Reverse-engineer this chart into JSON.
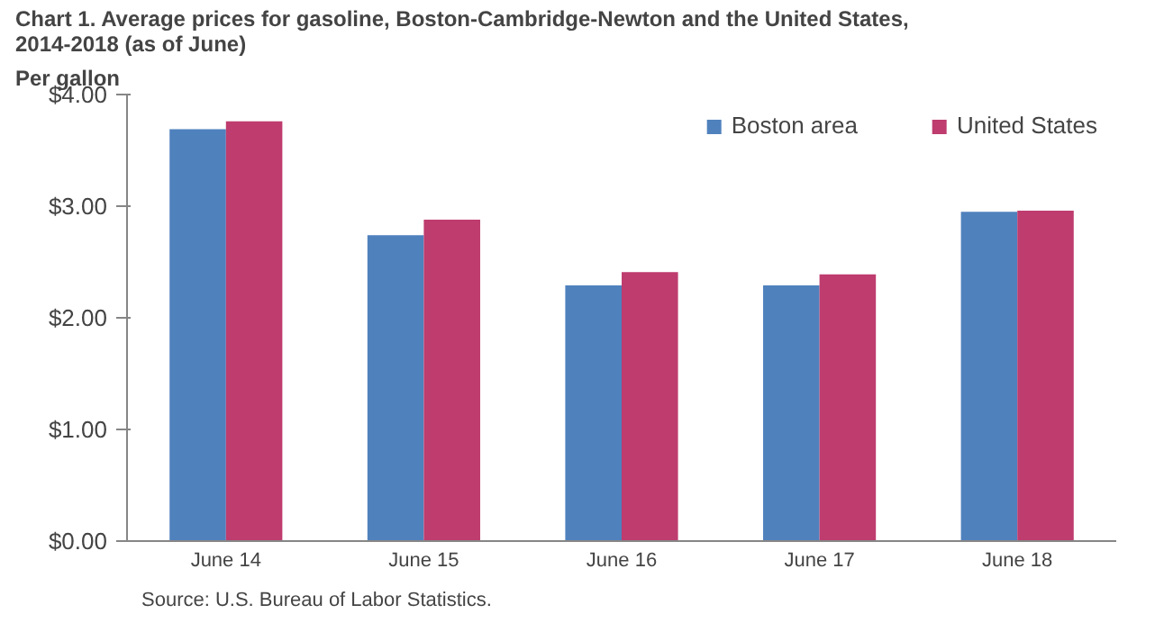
{
  "chart_data": {
    "type": "bar",
    "title": "Chart 1. Average prices for gasoline, Boston-Cambridge-Newton and the United States,\n2014-2018 (as of June)",
    "ylabel": "Per gallon",
    "categories": [
      "June 14",
      "June 15",
      "June 16",
      "June 17",
      "June 18"
    ],
    "series": [
      {
        "name": "Boston area",
        "color": "#4f81bd",
        "values": [
          3.69,
          2.74,
          2.29,
          2.29,
          2.95
        ]
      },
      {
        "name": "United States",
        "color": "#be3c6e",
        "values": [
          3.76,
          2.88,
          2.41,
          2.39,
          2.96
        ]
      }
    ],
    "ylim": [
      0,
      4
    ],
    "yticks": [
      {
        "value": 0,
        "label": "$0.00"
      },
      {
        "value": 1,
        "label": "$1.00"
      },
      {
        "value": 2,
        "label": "$2.00"
      },
      {
        "value": 3,
        "label": "$3.00"
      },
      {
        "value": 4,
        "label": "$4.00"
      }
    ],
    "grid": false,
    "legend": "top right",
    "annotations": [
      "Source: U.S. Bureau of Labor Statistics."
    ]
  }
}
